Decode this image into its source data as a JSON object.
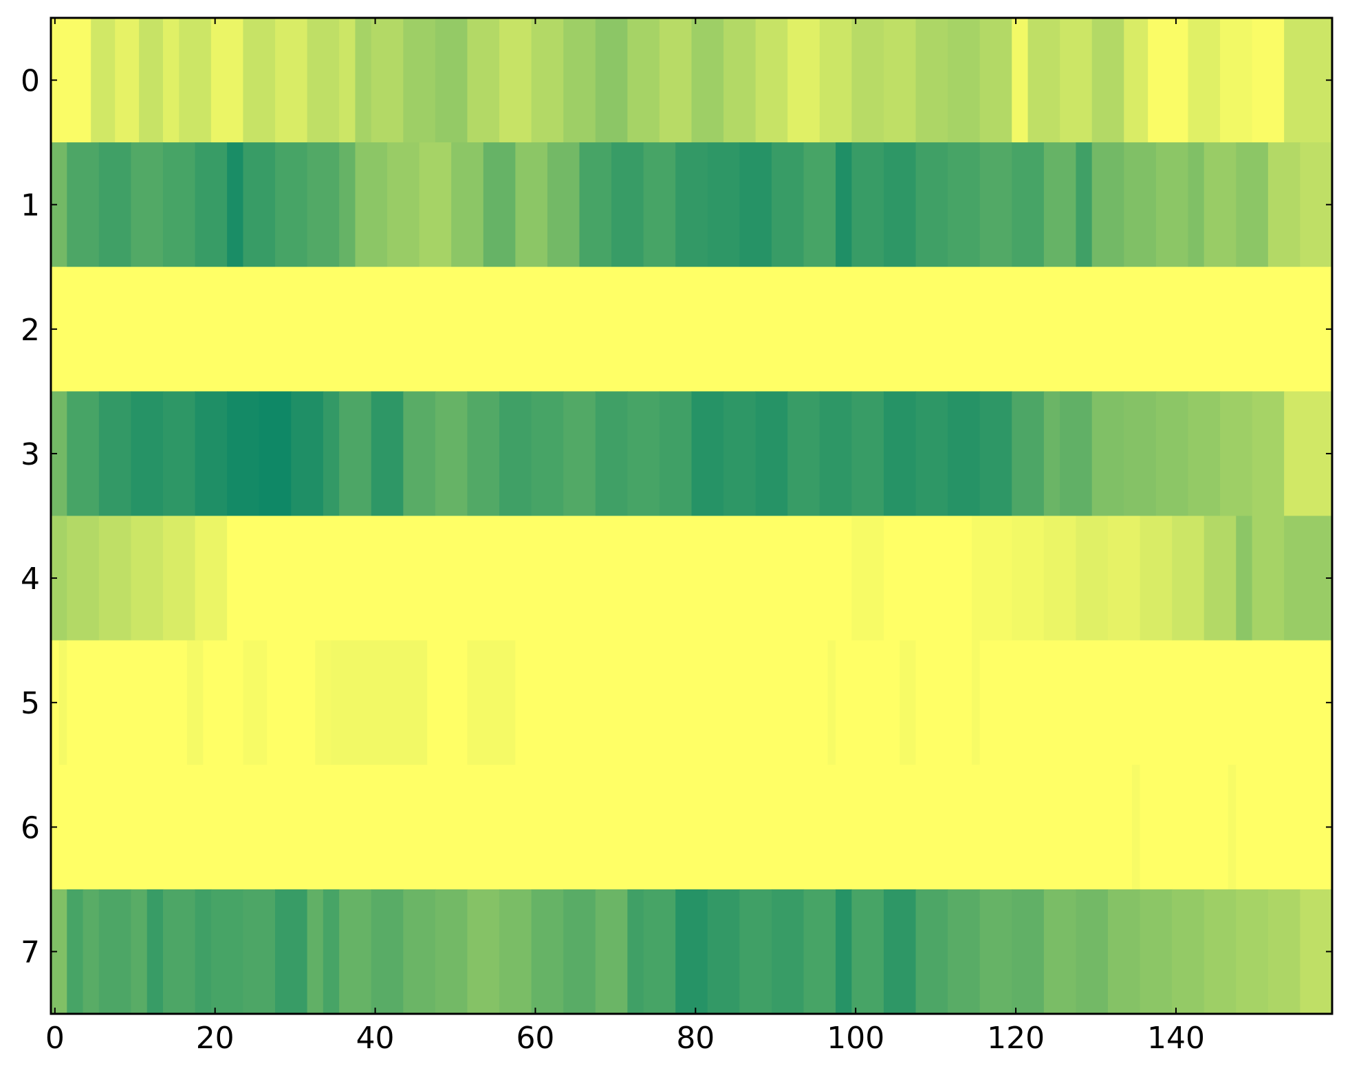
{
  "chart_data": {
    "type": "heatmap",
    "colormap": "summer_r",
    "value_range": [
      0,
      1
    ],
    "colors": {
      "low": "#ffff66",
      "high": "#008066"
    },
    "n_rows": 8,
    "n_cols": 160,
    "xlim": [
      -0.5,
      159.5
    ],
    "ylim": [
      7.5,
      -0.5
    ],
    "xticks": [
      0,
      20,
      40,
      60,
      80,
      100,
      120,
      140
    ],
    "yticks": [
      0,
      1,
      2,
      3,
      4,
      5,
      6,
      7
    ],
    "xtick_labels": [
      "0",
      "20",
      "40",
      "60",
      "80",
      "100",
      "120",
      "140"
    ],
    "ytick_labels": [
      "0",
      "1",
      "2",
      "3",
      "4",
      "5",
      "6",
      "7"
    ],
    "rows": [
      {
        "row": 0,
        "segments": [
          [
            0,
            5,
            0.02
          ],
          [
            5,
            8,
            0.18
          ],
          [
            8,
            11,
            0.1
          ],
          [
            11,
            14,
            0.22
          ],
          [
            14,
            16,
            0.12
          ],
          [
            16,
            20,
            0.2
          ],
          [
            20,
            24,
            0.08
          ],
          [
            24,
            28,
            0.22
          ],
          [
            28,
            32,
            0.15
          ],
          [
            32,
            36,
            0.25
          ],
          [
            36,
            38,
            0.2
          ],
          [
            38,
            40,
            0.35
          ],
          [
            40,
            44,
            0.3
          ],
          [
            44,
            48,
            0.38
          ],
          [
            48,
            52,
            0.42
          ],
          [
            52,
            56,
            0.3
          ],
          [
            56,
            60,
            0.22
          ],
          [
            60,
            64,
            0.3
          ],
          [
            64,
            68,
            0.38
          ],
          [
            68,
            72,
            0.45
          ],
          [
            72,
            76,
            0.35
          ],
          [
            76,
            80,
            0.28
          ],
          [
            80,
            84,
            0.38
          ],
          [
            84,
            88,
            0.3
          ],
          [
            88,
            92,
            0.22
          ],
          [
            92,
            96,
            0.12
          ],
          [
            96,
            100,
            0.2
          ],
          [
            100,
            104,
            0.28
          ],
          [
            104,
            108,
            0.25
          ],
          [
            108,
            112,
            0.32
          ],
          [
            112,
            116,
            0.35
          ],
          [
            116,
            120,
            0.3
          ],
          [
            120,
            122,
            0.05
          ],
          [
            122,
            126,
            0.25
          ],
          [
            126,
            130,
            0.2
          ],
          [
            130,
            134,
            0.3
          ],
          [
            134,
            137,
            0.15
          ],
          [
            137,
            142,
            0.02
          ],
          [
            142,
            146,
            0.12
          ],
          [
            146,
            150,
            0.05
          ],
          [
            150,
            154,
            0.02
          ],
          [
            154,
            160,
            0.2
          ]
        ]
      },
      {
        "row": 1,
        "segments": [
          [
            0,
            2,
            0.55
          ],
          [
            2,
            6,
            0.7
          ],
          [
            6,
            10,
            0.75
          ],
          [
            10,
            14,
            0.68
          ],
          [
            14,
            18,
            0.72
          ],
          [
            18,
            22,
            0.78
          ],
          [
            22,
            24,
            0.9
          ],
          [
            24,
            28,
            0.78
          ],
          [
            28,
            32,
            0.72
          ],
          [
            32,
            36,
            0.68
          ],
          [
            36,
            38,
            0.6
          ],
          [
            38,
            42,
            0.45
          ],
          [
            42,
            46,
            0.4
          ],
          [
            46,
            50,
            0.35
          ],
          [
            50,
            54,
            0.45
          ],
          [
            54,
            58,
            0.6
          ],
          [
            58,
            62,
            0.45
          ],
          [
            62,
            66,
            0.55
          ],
          [
            66,
            70,
            0.72
          ],
          [
            70,
            74,
            0.78
          ],
          [
            74,
            78,
            0.72
          ],
          [
            78,
            82,
            0.8
          ],
          [
            82,
            86,
            0.82
          ],
          [
            86,
            90,
            0.85
          ],
          [
            90,
            94,
            0.78
          ],
          [
            94,
            98,
            0.72
          ],
          [
            98,
            100,
            0.88
          ],
          [
            100,
            104,
            0.78
          ],
          [
            104,
            108,
            0.82
          ],
          [
            108,
            112,
            0.75
          ],
          [
            112,
            116,
            0.72
          ],
          [
            116,
            120,
            0.68
          ],
          [
            120,
            124,
            0.72
          ],
          [
            124,
            128,
            0.6
          ],
          [
            128,
            130,
            0.75
          ],
          [
            130,
            134,
            0.55
          ],
          [
            134,
            138,
            0.5
          ],
          [
            138,
            142,
            0.45
          ],
          [
            142,
            144,
            0.5
          ],
          [
            144,
            148,
            0.4
          ],
          [
            148,
            152,
            0.45
          ],
          [
            152,
            156,
            0.3
          ],
          [
            156,
            160,
            0.25
          ]
        ]
      },
      {
        "row": 2,
        "segments": [
          [
            0,
            160,
            0.0
          ]
        ]
      },
      {
        "row": 3,
        "segments": [
          [
            0,
            2,
            0.55
          ],
          [
            2,
            6,
            0.72
          ],
          [
            6,
            10,
            0.8
          ],
          [
            10,
            14,
            0.85
          ],
          [
            14,
            18,
            0.82
          ],
          [
            18,
            22,
            0.88
          ],
          [
            22,
            26,
            0.92
          ],
          [
            26,
            30,
            0.94
          ],
          [
            30,
            34,
            0.88
          ],
          [
            34,
            36,
            0.8
          ],
          [
            36,
            40,
            0.7
          ],
          [
            40,
            44,
            0.82
          ],
          [
            44,
            48,
            0.65
          ],
          [
            48,
            52,
            0.6
          ],
          [
            52,
            56,
            0.68
          ],
          [
            56,
            60,
            0.75
          ],
          [
            60,
            64,
            0.72
          ],
          [
            64,
            68,
            0.68
          ],
          [
            68,
            72,
            0.75
          ],
          [
            72,
            76,
            0.72
          ],
          [
            76,
            80,
            0.75
          ],
          [
            80,
            84,
            0.85
          ],
          [
            84,
            88,
            0.82
          ],
          [
            88,
            92,
            0.85
          ],
          [
            92,
            96,
            0.78
          ],
          [
            96,
            100,
            0.82
          ],
          [
            100,
            104,
            0.78
          ],
          [
            104,
            108,
            0.85
          ],
          [
            108,
            112,
            0.82
          ],
          [
            112,
            116,
            0.85
          ],
          [
            116,
            120,
            0.82
          ],
          [
            120,
            124,
            0.7
          ],
          [
            124,
            126,
            0.58
          ],
          [
            126,
            130,
            0.62
          ],
          [
            130,
            134,
            0.5
          ],
          [
            134,
            138,
            0.48
          ],
          [
            138,
            142,
            0.45
          ],
          [
            142,
            146,
            0.42
          ],
          [
            146,
            150,
            0.38
          ],
          [
            150,
            154,
            0.35
          ],
          [
            154,
            160,
            0.18
          ]
        ]
      },
      {
        "row": 4,
        "segments": [
          [
            0,
            2,
            0.35
          ],
          [
            2,
            6,
            0.3
          ],
          [
            6,
            10,
            0.25
          ],
          [
            10,
            14,
            0.2
          ],
          [
            14,
            18,
            0.15
          ],
          [
            18,
            22,
            0.08
          ],
          [
            22,
            100,
            0.0
          ],
          [
            100,
            104,
            0.03
          ],
          [
            104,
            115,
            0.0
          ],
          [
            115,
            120,
            0.03
          ],
          [
            120,
            124,
            0.05
          ],
          [
            124,
            128,
            0.08
          ],
          [
            128,
            132,
            0.12
          ],
          [
            132,
            136,
            0.1
          ],
          [
            136,
            140,
            0.15
          ],
          [
            140,
            144,
            0.2
          ],
          [
            144,
            148,
            0.3
          ],
          [
            148,
            150,
            0.45
          ],
          [
            150,
            154,
            0.35
          ],
          [
            154,
            160,
            0.4
          ]
        ]
      },
      {
        "row": 5,
        "segments": [
          [
            0,
            1,
            0.0
          ],
          [
            1,
            2,
            0.04
          ],
          [
            2,
            17,
            0.0
          ],
          [
            17,
            19,
            0.04
          ],
          [
            19,
            24,
            0.0
          ],
          [
            24,
            27,
            0.03
          ],
          [
            27,
            33,
            0.0
          ],
          [
            33,
            35,
            0.04
          ],
          [
            35,
            47,
            0.05
          ],
          [
            47,
            52,
            0.0
          ],
          [
            52,
            58,
            0.04
          ],
          [
            58,
            97,
            0.0
          ],
          [
            97,
            98,
            0.03
          ],
          [
            98,
            106,
            0.0
          ],
          [
            106,
            108,
            0.03
          ],
          [
            108,
            115,
            0.0
          ],
          [
            115,
            116,
            0.03
          ],
          [
            116,
            160,
            0.0
          ]
        ]
      },
      {
        "row": 6,
        "segments": [
          [
            0,
            135,
            0.0
          ],
          [
            135,
            136,
            0.03
          ],
          [
            136,
            147,
            0.0
          ],
          [
            147,
            148,
            0.03
          ],
          [
            148,
            160,
            0.0
          ]
        ]
      },
      {
        "row": 7,
        "segments": [
          [
            0,
            2,
            0.5
          ],
          [
            2,
            4,
            0.72
          ],
          [
            4,
            6,
            0.65
          ],
          [
            6,
            10,
            0.7
          ],
          [
            10,
            12,
            0.65
          ],
          [
            12,
            14,
            0.78
          ],
          [
            14,
            18,
            0.7
          ],
          [
            18,
            20,
            0.75
          ],
          [
            20,
            24,
            0.72
          ],
          [
            24,
            28,
            0.7
          ],
          [
            28,
            32,
            0.78
          ],
          [
            32,
            34,
            0.62
          ],
          [
            34,
            36,
            0.72
          ],
          [
            36,
            40,
            0.6
          ],
          [
            40,
            44,
            0.65
          ],
          [
            44,
            48,
            0.58
          ],
          [
            48,
            52,
            0.55
          ],
          [
            52,
            56,
            0.48
          ],
          [
            56,
            60,
            0.52
          ],
          [
            60,
            64,
            0.6
          ],
          [
            64,
            68,
            0.65
          ],
          [
            68,
            72,
            0.58
          ],
          [
            72,
            74,
            0.75
          ],
          [
            74,
            78,
            0.72
          ],
          [
            78,
            82,
            0.85
          ],
          [
            82,
            86,
            0.8
          ],
          [
            86,
            90,
            0.75
          ],
          [
            90,
            94,
            0.78
          ],
          [
            94,
            98,
            0.72
          ],
          [
            98,
            100,
            0.85
          ],
          [
            100,
            104,
            0.72
          ],
          [
            104,
            108,
            0.82
          ],
          [
            108,
            112,
            0.7
          ],
          [
            112,
            116,
            0.65
          ],
          [
            116,
            120,
            0.6
          ],
          [
            120,
            124,
            0.62
          ],
          [
            124,
            128,
            0.52
          ],
          [
            128,
            132,
            0.55
          ],
          [
            132,
            136,
            0.48
          ],
          [
            136,
            140,
            0.45
          ],
          [
            140,
            144,
            0.42
          ],
          [
            144,
            148,
            0.38
          ],
          [
            148,
            152,
            0.35
          ],
          [
            152,
            156,
            0.32
          ],
          [
            156,
            160,
            0.25
          ]
        ]
      }
    ]
  }
}
